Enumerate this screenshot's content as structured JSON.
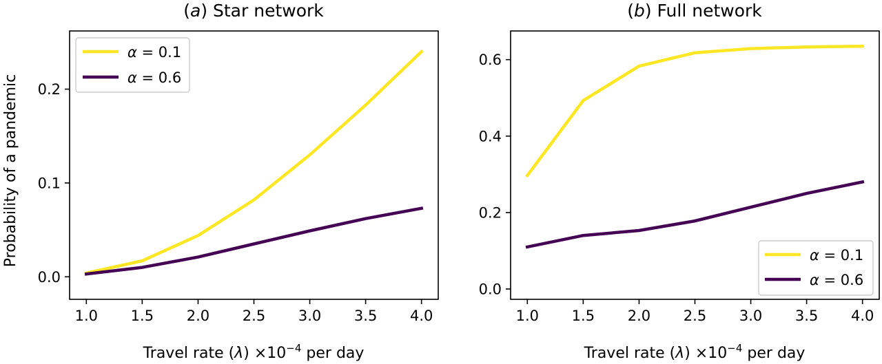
{
  "figure": {
    "ylabel": "Probability of a pandemic",
    "xlabel_prefix": "Travel rate (",
    "xlabel_lambda": "λ",
    "xlabel_mid": ") ×10",
    "xlabel_exp": "−4",
    "xlabel_suffix": " per day"
  },
  "chart_data": [
    {
      "type": "line",
      "panel_letter": "a",
      "title": "Star network",
      "x": [
        1.0,
        1.5,
        2.0,
        2.5,
        3.0,
        3.5,
        4.0
      ],
      "xticks": [
        "1.0",
        "1.5",
        "2.0",
        "2.5",
        "3.0",
        "3.5",
        "4.0"
      ],
      "xlim": [
        0.85,
        4.15
      ],
      "yticks": [
        "0.0",
        "0.1",
        "0.2"
      ],
      "ytick_values": [
        0.0,
        0.1,
        0.2
      ],
      "ylim": [
        -0.024,
        0.262
      ],
      "legend_position": "top-left",
      "series": [
        {
          "name": "α = 0.1",
          "greek": "α",
          "eq": " = 0.1",
          "color": "#fde725",
          "values": [
            0.004,
            0.017,
            0.044,
            0.082,
            0.13,
            0.183,
            0.24
          ]
        },
        {
          "name": "α = 0.6",
          "greek": "α",
          "eq": " = 0.6",
          "color": "#440154",
          "values": [
            0.003,
            0.01,
            0.021,
            0.035,
            0.049,
            0.062,
            0.073
          ]
        }
      ]
    },
    {
      "type": "line",
      "panel_letter": "b",
      "title": "Full network",
      "x": [
        1.0,
        1.5,
        2.0,
        2.5,
        3.0,
        3.5,
        4.0
      ],
      "xticks": [
        "1.0",
        "1.5",
        "2.0",
        "2.5",
        "3.0",
        "3.5",
        "4.0"
      ],
      "xlim": [
        0.85,
        4.15
      ],
      "yticks": [
        "0.0",
        "0.2",
        "0.4",
        "0.6"
      ],
      "ytick_values": [
        0.0,
        0.2,
        0.4,
        0.6
      ],
      "ylim": [
        -0.027,
        0.675
      ],
      "legend_position": "bottom-right",
      "series": [
        {
          "name": "α = 0.1",
          "greek": "α",
          "eq": " = 0.1",
          "color": "#fde725",
          "values": [
            0.297,
            0.493,
            0.583,
            0.618,
            0.629,
            0.633,
            0.635
          ]
        },
        {
          "name": "α = 0.6",
          "greek": "α",
          "eq": " = 0.6",
          "color": "#440154",
          "values": [
            0.11,
            0.14,
            0.153,
            0.178,
            0.214,
            0.25,
            0.28
          ]
        }
      ]
    }
  ]
}
